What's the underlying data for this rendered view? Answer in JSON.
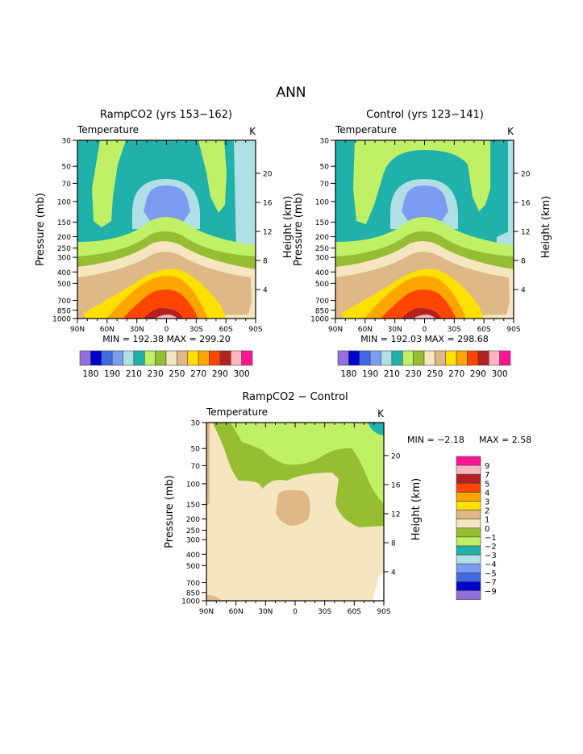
{
  "page_title": "ANN",
  "units": "K",
  "variable": "Temperature",
  "colors": {
    "levels": [
      "#9370db",
      "#0000cd",
      "#4169e1",
      "#7b9cf0",
      "#b0e0e6",
      "#20b2aa",
      "#bff066",
      "#97be33",
      "#f5e6c0",
      "#deb887",
      "#ffe000",
      "#ffa500",
      "#ff4500",
      "#b22222",
      "#ffb6c1",
      "#ff1493"
    ]
  },
  "chart_data": [
    {
      "type": "heatmap",
      "name": "rampco2",
      "title": "RampCO2 (yrs 153−162)",
      "subtitle_left": "Temperature",
      "subtitle_right": "K",
      "xlabel": "",
      "ylabel": "Pressure (mb)",
      "y2label": "Height (km)",
      "x_ticks": [
        "90N",
        "60N",
        "30N",
        "0",
        "30S",
        "60S",
        "90S"
      ],
      "y_ticks": [
        "30",
        "50",
        "70",
        "100",
        "150",
        "200",
        "250",
        "300",
        "400",
        "500",
        "700",
        "850",
        "1000"
      ],
      "y2_ticks": [
        "20",
        "16",
        "12",
        "8",
        "4"
      ],
      "min_label": "MIN = 192.38",
      "max_label": "MAX = 299.20",
      "min": 192.38,
      "max": 299.2,
      "colorbar_labels": [
        "180",
        "190",
        "210",
        "230",
        "250",
        "270",
        "290",
        "300"
      ],
      "colorbar_orientation": "horizontal"
    },
    {
      "type": "heatmap",
      "name": "control",
      "title": "Control (yrs 123−141)",
      "subtitle_left": "Temperature",
      "subtitle_right": "K",
      "xlabel": "",
      "ylabel": "Pressure (mb)",
      "y2label": "Height (km)",
      "x_ticks": [
        "90N",
        "60N",
        "30N",
        "0",
        "30S",
        "60S",
        "90S"
      ],
      "y_ticks": [
        "30",
        "50",
        "70",
        "100",
        "150",
        "200",
        "250",
        "300",
        "400",
        "500",
        "700",
        "850",
        "1000"
      ],
      "y2_ticks": [
        "20",
        "16",
        "12",
        "8",
        "4"
      ],
      "min_label": "MIN = 192.03",
      "max_label": "MAX = 298.68",
      "min": 192.03,
      "max": 298.68,
      "colorbar_labels": [
        "180",
        "190",
        "210",
        "230",
        "250",
        "270",
        "290",
        "300"
      ],
      "colorbar_orientation": "horizontal"
    },
    {
      "type": "heatmap",
      "name": "difference",
      "title": "RampCO2 − Control",
      "subtitle_left": "Temperature",
      "subtitle_right": "K",
      "xlabel": "",
      "ylabel": "Pressure (mb)",
      "y2label": "Height (km)",
      "x_ticks": [
        "90N",
        "60N",
        "30N",
        "0",
        "30S",
        "60S",
        "90S"
      ],
      "y_ticks": [
        "30",
        "50",
        "70",
        "100",
        "150",
        "200",
        "250",
        "300",
        "400",
        "500",
        "700",
        "850",
        "1000"
      ],
      "y2_ticks": [
        "20",
        "16",
        "12",
        "8",
        "4"
      ],
      "min_label": "MIN =  −2.18",
      "max_label": "MAX =    2.58",
      "min": -2.18,
      "max": 2.58,
      "colorbar_labels": [
        "9",
        "7",
        "5",
        "4",
        "3",
        "2",
        "1",
        "0",
        "−1",
        "−2",
        "−3",
        "−4",
        "−5",
        "−7",
        "−9"
      ],
      "colorbar_orientation": "vertical"
    }
  ]
}
